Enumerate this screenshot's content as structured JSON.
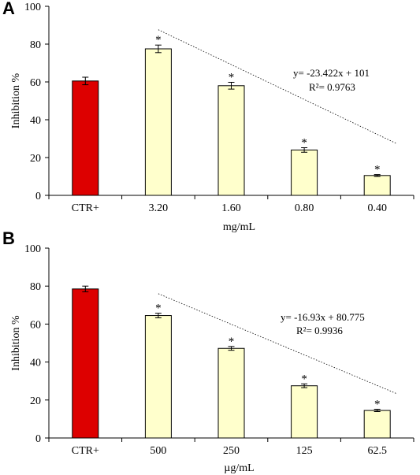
{
  "chart_data": [
    {
      "type": "bar",
      "panel": "A",
      "categories": [
        "CTR+",
        "3.20",
        "1.60",
        "0.80",
        "0.40"
      ],
      "values": [
        60.5,
        77.5,
        58.0,
        24.0,
        10.5
      ],
      "errors": [
        2.0,
        2.0,
        1.8,
        1.2,
        0.5
      ],
      "significance": [
        "",
        "*",
        "*",
        "*",
        "*"
      ],
      "bar_colors": [
        "#dd0000",
        "#ffffcc",
        "#ffffcc",
        "#ffffcc",
        "#ffffcc"
      ],
      "xlabel": "mg/mL",
      "ylabel": "Inhibition %",
      "ylim": [
        0,
        100
      ],
      "yticks": [
        "0",
        "20",
        "40",
        "60",
        "80",
        "100"
      ],
      "trendline": {
        "style": "dotted",
        "y_start": 87.6,
        "y_end": 27.3
      },
      "annotation_eq": "y= -23.422x + 101",
      "annotation_r2": "R²= 0.9763",
      "grid": false
    },
    {
      "type": "bar",
      "panel": "B",
      "categories": [
        "CTR+",
        "500",
        "250",
        "125",
        "62.5"
      ],
      "values": [
        78.5,
        64.5,
        47.2,
        27.5,
        14.5
      ],
      "errors": [
        1.5,
        1.2,
        1.0,
        1.0,
        0.6
      ],
      "significance": [
        "",
        "*",
        "*",
        "*",
        "*"
      ],
      "bar_colors": [
        "#dd0000",
        "#ffffcc",
        "#ffffcc",
        "#ffffcc",
        "#ffffcc"
      ],
      "xlabel": "µg/mL",
      "ylabel": "Inhibition %",
      "ylim": [
        0,
        100
      ],
      "yticks": [
        "0",
        "20",
        "40",
        "60",
        "80",
        "100"
      ],
      "trendline": {
        "style": "dotted",
        "y_start": 76.0,
        "y_end": 23.3
      },
      "annotation_eq": "y= -16.93x + 80.775",
      "annotation_r2": "R²= 0.9936",
      "grid": false
    }
  ]
}
